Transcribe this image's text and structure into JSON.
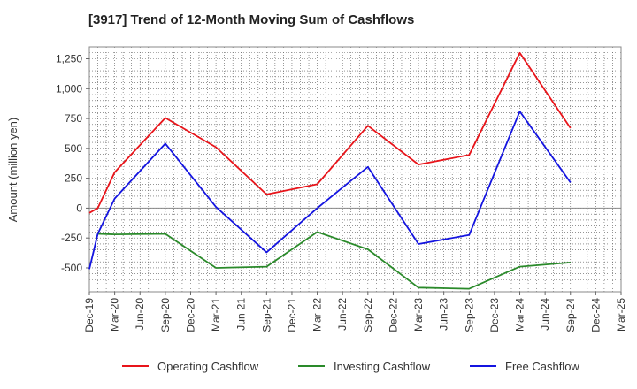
{
  "chart_data": {
    "type": "line",
    "title": "[3917]  Trend of 12-Month Moving Sum of Cashflows",
    "ylabel": "Amount (million yen)",
    "xlabel": "",
    "ylim": [
      -700,
      1350
    ],
    "yticks": [
      -500,
      -250,
      0,
      250,
      500,
      750,
      1000,
      1250
    ],
    "ytick_labels": [
      "-500",
      "-250",
      "0",
      "250",
      "500",
      "750",
      "1,000",
      "1,250"
    ],
    "x_tick_labels": [
      "Dec-19",
      "Mar-20",
      "Jun-20",
      "Sep-20",
      "Dec-20",
      "Mar-21",
      "Jun-21",
      "Sep-21",
      "Dec-21",
      "Mar-22",
      "Jun-22",
      "Sep-22",
      "Dec-22",
      "Mar-23",
      "Jun-23",
      "Sep-23",
      "Dec-23",
      "Mar-24",
      "Jun-24",
      "Sep-24",
      "Dec-24",
      "Mar-25"
    ],
    "x_range": [
      "2019-12",
      "2025-03"
    ],
    "grid": true,
    "legend_position": "bottom",
    "series": [
      {
        "name": "Operating Cashflow",
        "color": "#e8141a",
        "points": [
          {
            "x": "2019-12",
            "y": -40
          },
          {
            "x": "2020-01",
            "y": 0
          },
          {
            "x": "2020-03",
            "y": 300
          },
          {
            "x": "2020-09",
            "y": 755
          },
          {
            "x": "2021-03",
            "y": 510
          },
          {
            "x": "2021-09",
            "y": 115
          },
          {
            "x": "2022-03",
            "y": 200
          },
          {
            "x": "2022-09",
            "y": 690
          },
          {
            "x": "2023-03",
            "y": 365
          },
          {
            "x": "2023-09",
            "y": 445
          },
          {
            "x": "2024-03",
            "y": 1300
          },
          {
            "x": "2024-09",
            "y": 670
          }
        ]
      },
      {
        "name": "Investing Cashflow",
        "color": "#2a8a2a",
        "points": [
          {
            "x": "2020-01",
            "y": -215
          },
          {
            "x": "2020-03",
            "y": -220
          },
          {
            "x": "2020-09",
            "y": -215
          },
          {
            "x": "2021-03",
            "y": -500
          },
          {
            "x": "2021-09",
            "y": -490
          },
          {
            "x": "2022-03",
            "y": -200
          },
          {
            "x": "2022-09",
            "y": -345
          },
          {
            "x": "2023-03",
            "y": -665
          },
          {
            "x": "2023-09",
            "y": -675
          },
          {
            "x": "2024-03",
            "y": -490
          },
          {
            "x": "2024-09",
            "y": -455
          }
        ]
      },
      {
        "name": "Free Cashflow",
        "color": "#1414e0",
        "points": [
          {
            "x": "2019-12",
            "y": -510
          },
          {
            "x": "2020-01",
            "y": -215
          },
          {
            "x": "2020-03",
            "y": 80
          },
          {
            "x": "2020-09",
            "y": 540
          },
          {
            "x": "2021-03",
            "y": 10
          },
          {
            "x": "2021-09",
            "y": -370
          },
          {
            "x": "2022-03",
            "y": 0
          },
          {
            "x": "2022-09",
            "y": 345
          },
          {
            "x": "2023-03",
            "y": -300
          },
          {
            "x": "2023-09",
            "y": -225
          },
          {
            "x": "2024-03",
            "y": 810
          },
          {
            "x": "2024-09",
            "y": 215
          }
        ]
      }
    ]
  }
}
